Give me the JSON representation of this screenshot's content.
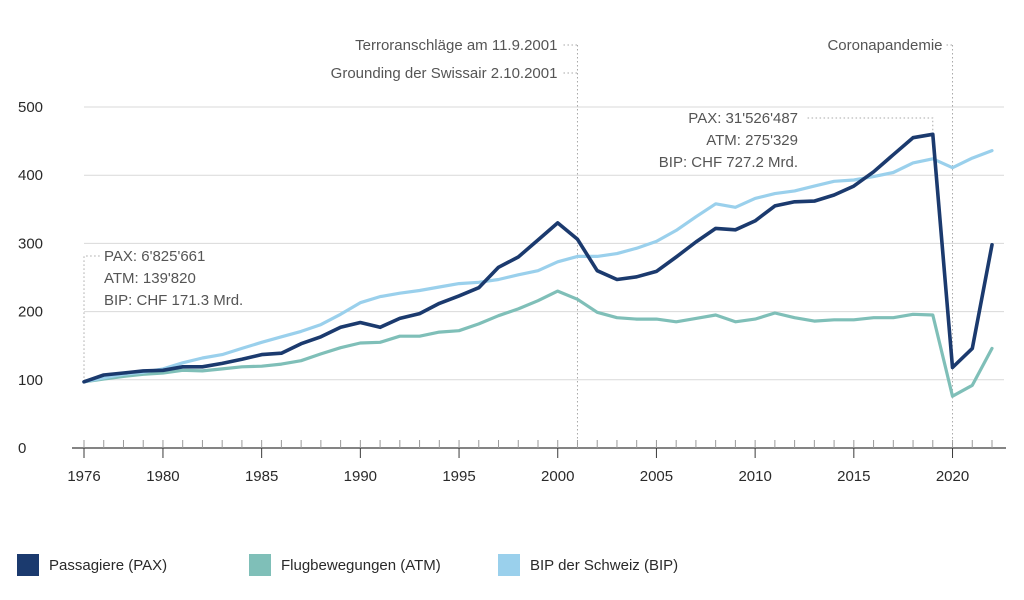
{
  "chart_data": {
    "type": "line",
    "xlim": [
      1976,
      2022
    ],
    "ylim": [
      0,
      500
    ],
    "y_ticks": [
      0,
      100,
      200,
      300,
      400,
      500
    ],
    "x_ticks": [
      1976,
      1980,
      1985,
      1990,
      1995,
      2000,
      2005,
      2010,
      2015,
      2020
    ],
    "grid": "horizontal",
    "legend_position": "bottom",
    "x": [
      1976,
      1977,
      1978,
      1979,
      1980,
      1981,
      1982,
      1983,
      1984,
      1985,
      1986,
      1987,
      1988,
      1989,
      1990,
      1991,
      1992,
      1993,
      1994,
      1995,
      1996,
      1997,
      1998,
      1999,
      2000,
      2001,
      2002,
      2003,
      2004,
      2005,
      2006,
      2007,
      2008,
      2009,
      2010,
      2011,
      2012,
      2013,
      2014,
      2015,
      2016,
      2017,
      2018,
      2019,
      2020,
      2021,
      2022
    ],
    "series": [
      {
        "name": "Passagiere (PAX)",
        "color": "#1b3a6e",
        "values": [
          97,
          107,
          110,
          113,
          114,
          119,
          119,
          124,
          130,
          137,
          139,
          153,
          163,
          177,
          184,
          177,
          190,
          197,
          212,
          223,
          235,
          265,
          280,
          305,
          330,
          306,
          260,
          247,
          251,
          259,
          280,
          302,
          322,
          320,
          333,
          355,
          361,
          362,
          371,
          384,
          405,
          430,
          455,
          460,
          118,
          146,
          298
        ]
      },
      {
        "name": "Flugbewegungen (ATM)",
        "color": "#7fbfb8",
        "values": [
          97,
          101,
          105,
          108,
          110,
          114,
          113,
          116,
          119,
          120,
          123,
          128,
          138,
          147,
          154,
          155,
          164,
          164,
          170,
          172,
          182,
          194,
          204,
          216,
          230,
          218,
          199,
          191,
          189,
          189,
          185,
          190,
          195,
          185,
          189,
          198,
          191,
          186,
          188,
          188,
          191,
          191,
          196,
          195,
          76,
          92,
          146
        ]
      },
      {
        "name": "BIP der Schweiz (BIP)",
        "color": "#9ad0ec",
        "values": [
          97,
          103,
          108,
          111,
          116,
          125,
          132,
          137,
          146,
          155,
          163,
          171,
          181,
          196,
          213,
          222,
          227,
          231,
          236,
          241,
          243,
          247,
          254,
          260,
          273,
          281,
          281,
          285,
          293,
          303,
          319,
          339,
          358,
          353,
          366,
          373,
          377,
          384,
          391,
          393,
          398,
          404,
          418,
          424,
          411,
          425,
          436
        ]
      }
    ],
    "annotations": {
      "start": [
        "PAX: 6'825'661",
        "ATM: 139'820",
        "BIP: CHF 171.3 Mrd."
      ],
      "peak": [
        "PAX: 31'526'487",
        "ATM: 275'329",
        "BIP: CHF 727.2 Mrd."
      ],
      "event_2001": [
        "Terroranschläge am 11.9.2001",
        "Grounding der Swissair 2.10.2001"
      ],
      "event_2020": [
        "Coronapandemie"
      ]
    }
  },
  "legend": [
    {
      "label": "Passagiere (PAX)",
      "color": "#1b3a6e"
    },
    {
      "label": "Flugbewegungen (ATM)",
      "color": "#7fbfb8"
    },
    {
      "label": "BIP der Schweiz (BIP)",
      "color": "#9ad0ec"
    }
  ]
}
